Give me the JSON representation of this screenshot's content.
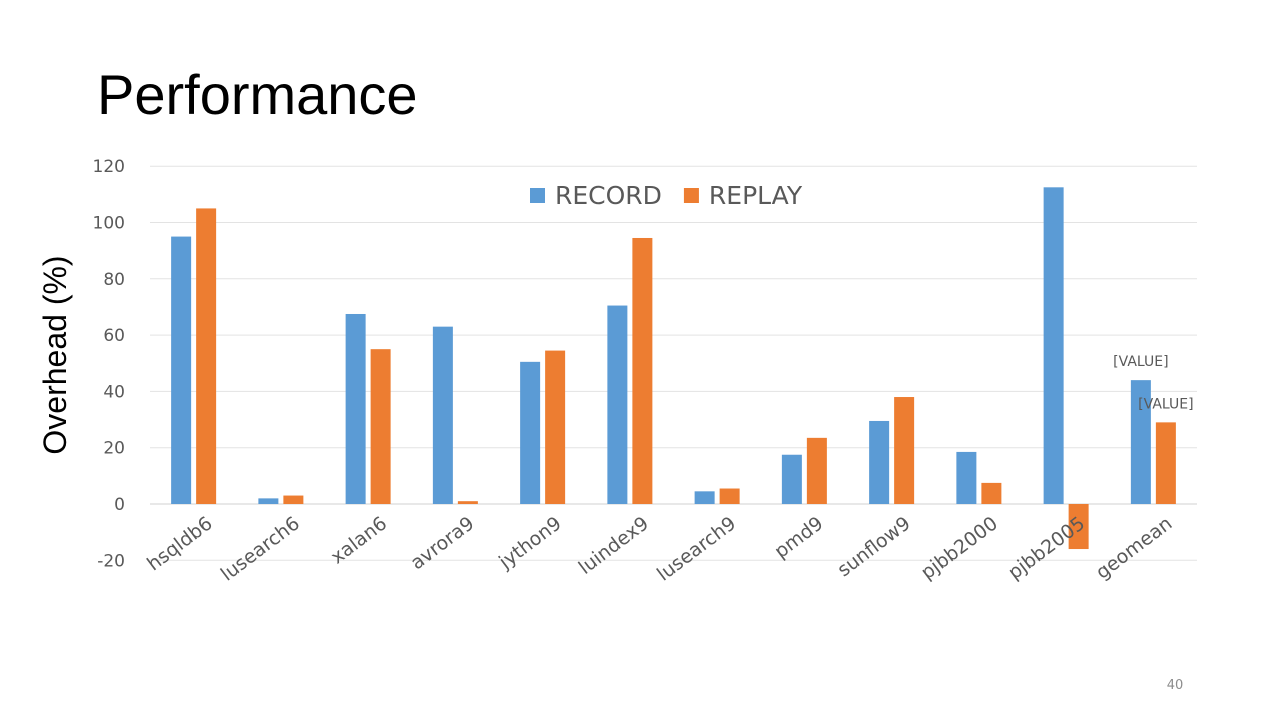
{
  "slide": {
    "title": "Performance",
    "slide_number": "40"
  },
  "chart_data": {
    "type": "bar",
    "title": "",
    "xlabel": "",
    "ylabel": "Overhead (%)",
    "ylim": [
      -20,
      120
    ],
    "yticks": [
      -20,
      0,
      20,
      40,
      60,
      80,
      100,
      120
    ],
    "grid": true,
    "legend_position": "top-center",
    "categories": [
      "hsqldb6",
      "lusearch6",
      "xalan6",
      "avrora9",
      "jython9",
      "luindex9",
      "lusearch9",
      "pmd9",
      "sunflow9",
      "pjbb2000",
      "pjbb2005",
      "geomean"
    ],
    "series": [
      {
        "name": "RECORD",
        "color": "#5b9bd5",
        "values": [
          95,
          2,
          67.5,
          63,
          50.5,
          70.5,
          4.5,
          17.5,
          29.5,
          18.5,
          112.5,
          44
        ]
      },
      {
        "name": "REPLAY",
        "color": "#ed7d31",
        "values": [
          105,
          3,
          55,
          1,
          54.5,
          94.5,
          5.5,
          23.5,
          38,
          7.5,
          -16,
          29
        ]
      }
    ],
    "annotations": [
      {
        "category": "geomean",
        "series": "RECORD",
        "text": "[VALUE]"
      },
      {
        "category": "geomean",
        "series": "REPLAY",
        "text": "[VALUE]"
      }
    ]
  }
}
